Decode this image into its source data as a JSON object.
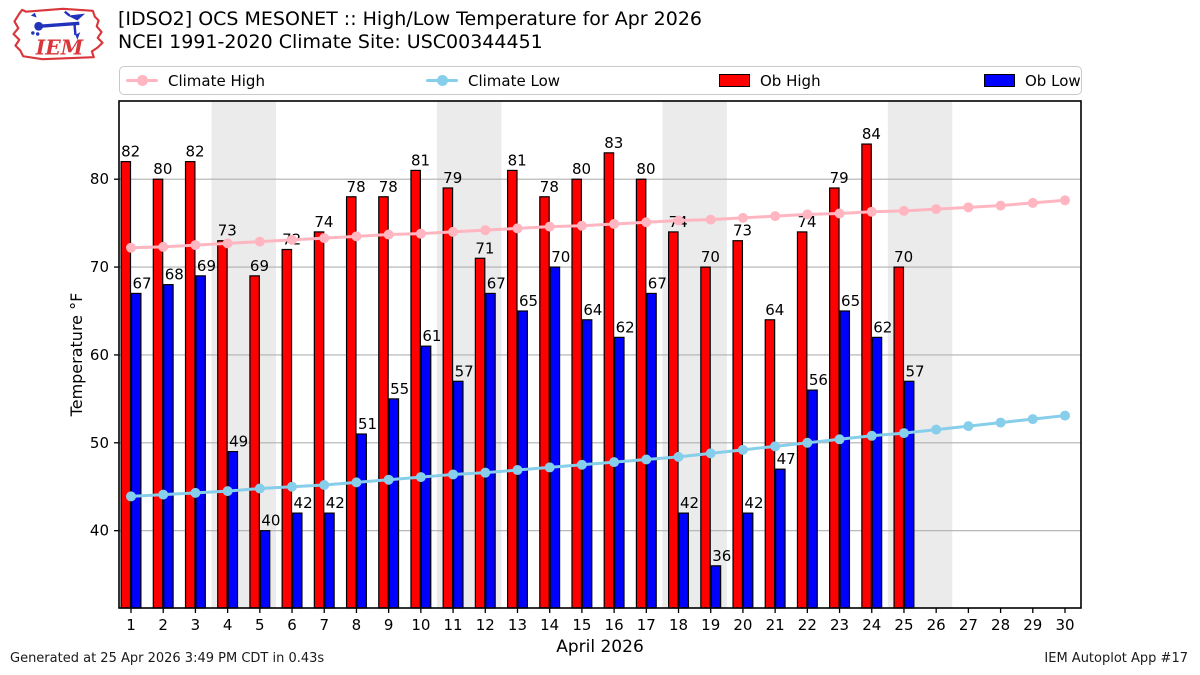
{
  "header": {
    "title_line1": "[IDSO2] OCS MESONET :: High/Low Temperature for Apr 2026",
    "title_line2": "NCEI 1991-2020 Climate Site: USC00344451",
    "logo_text": "IEM"
  },
  "footer": {
    "generated": "Generated at 25 Apr 2026 3:49 PM CDT in 0.43s",
    "app": "IEM Autoplot App #17"
  },
  "chart_data": {
    "type": "bar",
    "title": "[IDSO2] OCS MESONET :: High/Low Temperature for Apr 2026",
    "subtitle": "NCEI 1991-2020 Climate Site: USC00344451",
    "xlabel": "April 2026",
    "ylabel": "Temperature °F",
    "x": [
      1,
      2,
      3,
      4,
      5,
      6,
      7,
      8,
      9,
      10,
      11,
      12,
      13,
      14,
      15,
      16,
      17,
      18,
      19,
      20,
      21,
      22,
      23,
      24,
      25,
      26,
      27,
      28,
      29,
      30
    ],
    "ylim": [
      31.2,
      88.9
    ],
    "yticks": [
      40,
      50,
      60,
      70,
      80
    ],
    "grid": true,
    "legend_position": "top",
    "weekend_shading_days": [
      [
        3.5,
        5.5
      ],
      [
        10.5,
        12.5
      ],
      [
        17.5,
        19.5
      ],
      [
        24.5,
        26.5
      ]
    ],
    "weekend_shading_color": "#ebebeb",
    "series": [
      {
        "name": "Climate High",
        "type": "line",
        "color": "#ffb6c1",
        "values": [
          72.2,
          72.3,
          72.5,
          72.7,
          72.9,
          73.1,
          73.3,
          73.5,
          73.7,
          73.8,
          74.0,
          74.2,
          74.4,
          74.6,
          74.7,
          74.9,
          75.1,
          75.3,
          75.4,
          75.6,
          75.8,
          76.0,
          76.1,
          76.3,
          76.4,
          76.6,
          76.8,
          77.0,
          77.3,
          77.6
        ]
      },
      {
        "name": "Climate Low",
        "type": "line",
        "color": "#87ceeb",
        "values": [
          43.9,
          44.1,
          44.3,
          44.5,
          44.8,
          45.0,
          45.2,
          45.5,
          45.8,
          46.1,
          46.4,
          46.6,
          46.9,
          47.2,
          47.5,
          47.8,
          48.1,
          48.4,
          48.8,
          49.2,
          49.6,
          50.0,
          50.4,
          50.8,
          51.1,
          51.5,
          51.9,
          52.3,
          52.7,
          53.1
        ]
      },
      {
        "name": "Ob High",
        "type": "bar",
        "color": "#ff0000",
        "values": [
          82,
          80,
          82,
          73,
          69,
          72,
          74,
          78,
          78,
          81,
          79,
          71,
          81,
          78,
          80,
          83,
          80,
          74,
          70,
          73,
          64,
          74,
          79,
          84,
          70,
          null,
          null,
          null,
          null,
          null
        ]
      },
      {
        "name": "Ob Low",
        "type": "bar",
        "color": "#0000ff",
        "values": [
          67,
          68,
          69,
          49,
          40,
          42,
          42,
          51,
          55,
          61,
          57,
          67,
          65,
          70,
          64,
          62,
          67,
          42,
          36,
          42,
          47,
          56,
          65,
          62,
          57,
          null,
          null,
          null,
          null,
          null
        ]
      }
    ]
  }
}
